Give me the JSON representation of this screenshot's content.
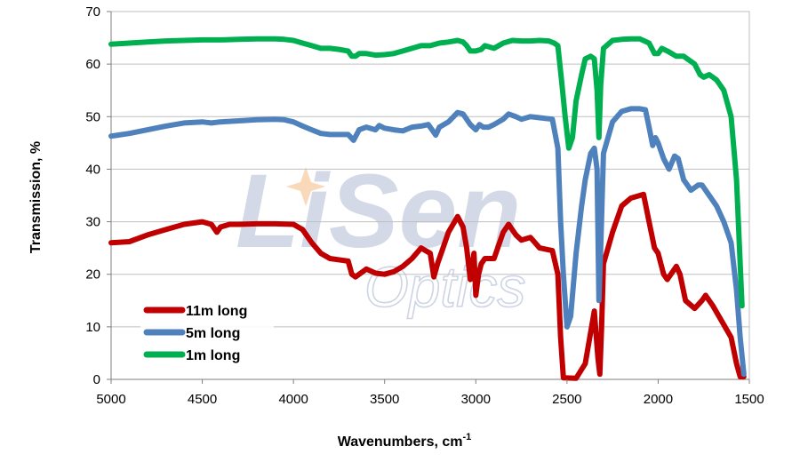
{
  "chart_data": {
    "type": "line",
    "title": "",
    "xlabel": "Wavenumbers, cm",
    "xlabel_superscript": "-1",
    "ylabel": "Transmission, %",
    "xlim": [
      5000,
      1500
    ],
    "ylim": [
      0,
      70
    ],
    "x_reversed": true,
    "x_ticks": [
      "5000",
      "4500",
      "4000",
      "3500",
      "3000",
      "2500",
      "2000",
      "1500"
    ],
    "y_ticks": [
      "0",
      "10",
      "20",
      "30",
      "40",
      "50",
      "60",
      "70"
    ],
    "grid": "horizontal",
    "legend_position": "lower-left",
    "watermark": {
      "logo_text": "LiSen",
      "sub_text": "Optics"
    },
    "series": [
      {
        "name": "11m long",
        "color": "#c00000",
        "points": [
          [
            5000,
            26
          ],
          [
            4900,
            26.2
          ],
          [
            4800,
            27.5
          ],
          [
            4700,
            28.5
          ],
          [
            4600,
            29.5
          ],
          [
            4500,
            30
          ],
          [
            4450,
            29.5
          ],
          [
            4420,
            28
          ],
          [
            4400,
            29
          ],
          [
            4350,
            29.5
          ],
          [
            4300,
            29.5
          ],
          [
            4200,
            29.6
          ],
          [
            4100,
            29.6
          ],
          [
            4000,
            29.5
          ],
          [
            3950,
            28.5
          ],
          [
            3900,
            26
          ],
          [
            3850,
            24
          ],
          [
            3800,
            23
          ],
          [
            3700,
            22.5
          ],
          [
            3680,
            20
          ],
          [
            3660,
            19.5
          ],
          [
            3600,
            21
          ],
          [
            3550,
            20.2
          ],
          [
            3500,
            20
          ],
          [
            3450,
            20.5
          ],
          [
            3400,
            21.5
          ],
          [
            3350,
            23
          ],
          [
            3300,
            25
          ],
          [
            3250,
            24
          ],
          [
            3230,
            19.5
          ],
          [
            3210,
            22
          ],
          [
            3180,
            25
          ],
          [
            3150,
            28
          ],
          [
            3100,
            31
          ],
          [
            3070,
            29
          ],
          [
            3050,
            25
          ],
          [
            3030,
            19
          ],
          [
            3010,
            24
          ],
          [
            3000,
            16
          ],
          [
            2985,
            20
          ],
          [
            2970,
            22
          ],
          [
            2950,
            23
          ],
          [
            2900,
            23
          ],
          [
            2850,
            28
          ],
          [
            2820,
            29.5
          ],
          [
            2780,
            27.5
          ],
          [
            2750,
            26.5
          ],
          [
            2700,
            27
          ],
          [
            2650,
            25
          ],
          [
            2580,
            24.5
          ],
          [
            2550,
            20
          ],
          [
            2535,
            8
          ],
          [
            2520,
            0.3
          ],
          [
            2450,
            0.2
          ],
          [
            2400,
            3
          ],
          [
            2350,
            13
          ],
          [
            2330,
            4
          ],
          [
            2320,
            1
          ],
          [
            2310,
            10
          ],
          [
            2300,
            22
          ],
          [
            2250,
            28
          ],
          [
            2200,
            33
          ],
          [
            2150,
            34.5
          ],
          [
            2100,
            35
          ],
          [
            2080,
            35.2
          ],
          [
            2050,
            30
          ],
          [
            2020,
            25
          ],
          [
            2000,
            24
          ],
          [
            1970,
            20
          ],
          [
            1950,
            19
          ],
          [
            1900,
            21.5
          ],
          [
            1880,
            20
          ],
          [
            1850,
            15
          ],
          [
            1800,
            13.5
          ],
          [
            1760,
            15
          ],
          [
            1740,
            16
          ],
          [
            1700,
            14
          ],
          [
            1650,
            11
          ],
          [
            1600,
            8
          ],
          [
            1570,
            3
          ],
          [
            1550,
            0.5
          ],
          [
            1530,
            0.5
          ]
        ]
      },
      {
        "name": "5m long",
        "color": "#4f81bd",
        "points": [
          [
            5000,
            46.3
          ],
          [
            4900,
            46.8
          ],
          [
            4800,
            47.5
          ],
          [
            4700,
            48.2
          ],
          [
            4600,
            48.8
          ],
          [
            4500,
            49
          ],
          [
            4450,
            48.8
          ],
          [
            4400,
            49
          ],
          [
            4300,
            49.2
          ],
          [
            4200,
            49.4
          ],
          [
            4100,
            49.5
          ],
          [
            4050,
            49.4
          ],
          [
            4000,
            49
          ],
          [
            3950,
            48.2
          ],
          [
            3900,
            47.5
          ],
          [
            3850,
            46.8
          ],
          [
            3800,
            46.6
          ],
          [
            3700,
            46.6
          ],
          [
            3670,
            45.5
          ],
          [
            3640,
            47.5
          ],
          [
            3600,
            48
          ],
          [
            3550,
            47.5
          ],
          [
            3530,
            48.3
          ],
          [
            3500,
            47.8
          ],
          [
            3450,
            47.5
          ],
          [
            3400,
            47.3
          ],
          [
            3350,
            48
          ],
          [
            3300,
            48.2
          ],
          [
            3260,
            48.5
          ],
          [
            3240,
            47.5
          ],
          [
            3220,
            46.5
          ],
          [
            3200,
            48
          ],
          [
            3150,
            49
          ],
          [
            3100,
            50.8
          ],
          [
            3070,
            50.5
          ],
          [
            3050,
            49.5
          ],
          [
            3030,
            48.5
          ],
          [
            3000,
            47.5
          ],
          [
            2980,
            48.5
          ],
          [
            2960,
            48
          ],
          [
            2930,
            48
          ],
          [
            2900,
            48.5
          ],
          [
            2850,
            49.5
          ],
          [
            2820,
            50.5
          ],
          [
            2780,
            50
          ],
          [
            2750,
            49.5
          ],
          [
            2700,
            50
          ],
          [
            2650,
            49.8
          ],
          [
            2580,
            49.5
          ],
          [
            2550,
            44
          ],
          [
            2535,
            30
          ],
          [
            2520,
            20
          ],
          [
            2500,
            10
          ],
          [
            2480,
            12
          ],
          [
            2450,
            24
          ],
          [
            2420,
            33
          ],
          [
            2400,
            38
          ],
          [
            2370,
            43
          ],
          [
            2350,
            44
          ],
          [
            2335,
            40
          ],
          [
            2325,
            15
          ],
          [
            2315,
            25
          ],
          [
            2300,
            43
          ],
          [
            2250,
            49
          ],
          [
            2200,
            51
          ],
          [
            2150,
            51.5
          ],
          [
            2100,
            51.5
          ],
          [
            2070,
            51.3
          ],
          [
            2050,
            48
          ],
          [
            2030,
            44.5
          ],
          [
            2015,
            46
          ],
          [
            2000,
            45
          ],
          [
            1970,
            42
          ],
          [
            1940,
            40
          ],
          [
            1910,
            42.5
          ],
          [
            1890,
            42
          ],
          [
            1860,
            38
          ],
          [
            1820,
            36
          ],
          [
            1780,
            37
          ],
          [
            1760,
            37
          ],
          [
            1720,
            35
          ],
          [
            1680,
            33
          ],
          [
            1640,
            30
          ],
          [
            1600,
            26
          ],
          [
            1570,
            17
          ],
          [
            1550,
            8
          ],
          [
            1530,
            1
          ]
        ]
      },
      {
        "name": "1m long",
        "color": "#00b050",
        "points": [
          [
            5000,
            63.8
          ],
          [
            4900,
            64
          ],
          [
            4800,
            64.2
          ],
          [
            4700,
            64.4
          ],
          [
            4600,
            64.5
          ],
          [
            4500,
            64.6
          ],
          [
            4400,
            64.6
          ],
          [
            4300,
            64.7
          ],
          [
            4200,
            64.8
          ],
          [
            4100,
            64.8
          ],
          [
            4050,
            64.7
          ],
          [
            4000,
            64.5
          ],
          [
            3950,
            64
          ],
          [
            3900,
            63.5
          ],
          [
            3850,
            63
          ],
          [
            3800,
            63
          ],
          [
            3750,
            62.8
          ],
          [
            3700,
            62.5
          ],
          [
            3680,
            61.5
          ],
          [
            3660,
            61.5
          ],
          [
            3640,
            62
          ],
          [
            3600,
            62
          ],
          [
            3550,
            61.7
          ],
          [
            3500,
            61.8
          ],
          [
            3450,
            62
          ],
          [
            3400,
            62.5
          ],
          [
            3350,
            63
          ],
          [
            3300,
            63.5
          ],
          [
            3250,
            63.5
          ],
          [
            3200,
            64
          ],
          [
            3150,
            64.2
          ],
          [
            3100,
            64.5
          ],
          [
            3070,
            64.2
          ],
          [
            3050,
            63.5
          ],
          [
            3030,
            62.5
          ],
          [
            3000,
            62.5
          ],
          [
            2970,
            62.8
          ],
          [
            2950,
            63.5
          ],
          [
            2900,
            63
          ],
          [
            2850,
            64
          ],
          [
            2800,
            64.5
          ],
          [
            2750,
            64.4
          ],
          [
            2700,
            64.4
          ],
          [
            2650,
            64.5
          ],
          [
            2600,
            64.4
          ],
          [
            2570,
            64
          ],
          [
            2550,
            63.5
          ],
          [
            2530,
            57
          ],
          [
            2510,
            50
          ],
          [
            2490,
            44
          ],
          [
            2470,
            46
          ],
          [
            2450,
            53
          ],
          [
            2420,
            58
          ],
          [
            2400,
            61
          ],
          [
            2370,
            61.5
          ],
          [
            2350,
            61
          ],
          [
            2335,
            55
          ],
          [
            2325,
            46
          ],
          [
            2315,
            56
          ],
          [
            2300,
            63
          ],
          [
            2250,
            64.5
          ],
          [
            2200,
            64.7
          ],
          [
            2150,
            64.8
          ],
          [
            2100,
            64.8
          ],
          [
            2050,
            64
          ],
          [
            2020,
            62
          ],
          [
            2000,
            62
          ],
          [
            1980,
            63
          ],
          [
            1950,
            62.5
          ],
          [
            1900,
            61.5
          ],
          [
            1860,
            61.5
          ],
          [
            1820,
            60.5
          ],
          [
            1800,
            60
          ],
          [
            1770,
            58
          ],
          [
            1750,
            57.5
          ],
          [
            1720,
            58
          ],
          [
            1680,
            57
          ],
          [
            1640,
            55
          ],
          [
            1600,
            50
          ],
          [
            1570,
            38
          ],
          [
            1550,
            22
          ],
          [
            1540,
            14
          ]
        ]
      }
    ]
  }
}
